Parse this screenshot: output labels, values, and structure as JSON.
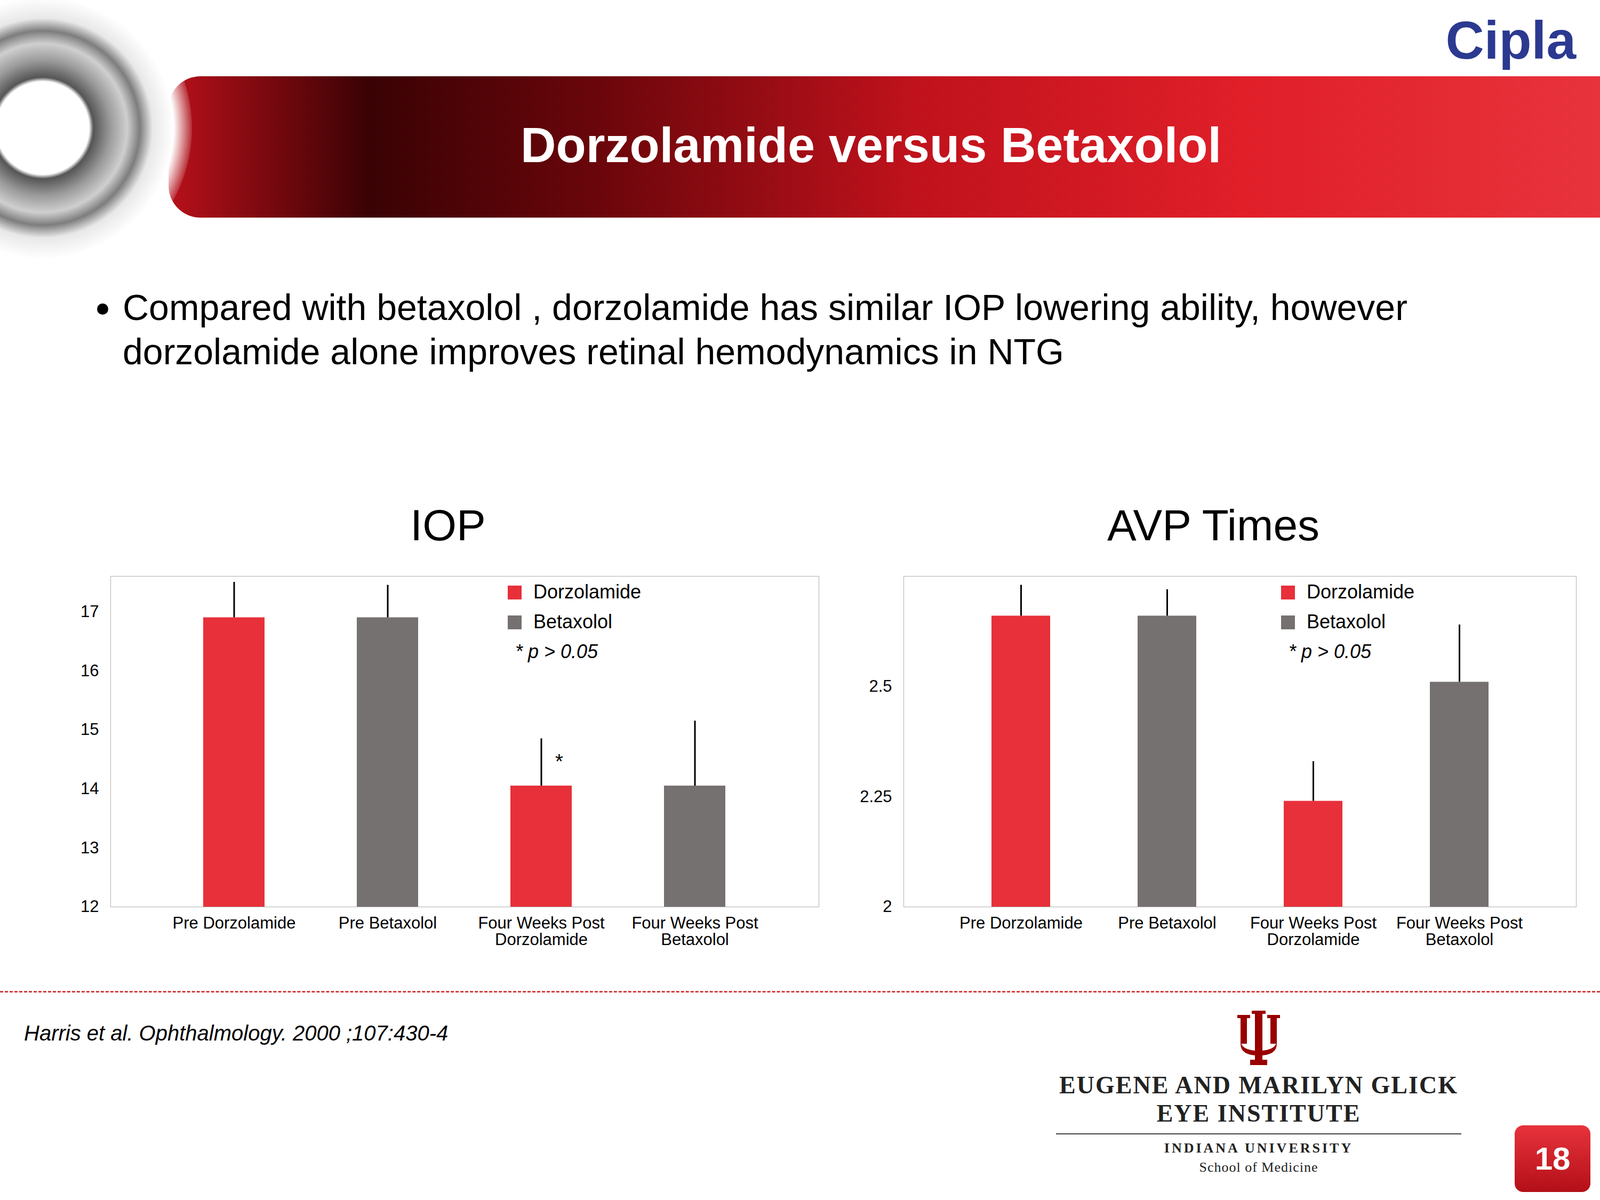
{
  "slide": {
    "logo": "Cipla",
    "title": "Dorzolamide versus Betaxolol",
    "bullet": "Compared with betaxolol , dorzolamide has similar IOP lowering ability, however dorzolamide alone improves retinal hemodynamics in NTG",
    "citation": "Harris et al. Ophthalmology. 2000 ;107:430-4",
    "institute": [
      "EUGENE AND MARILYN GLICK",
      "EYE INSTITUTE"
    ],
    "university": "INDIANA UNIVERSITY",
    "school": "School of Medicine",
    "page": "18"
  },
  "chart_data": [
    {
      "type": "bar",
      "title": "IOP",
      "categories": [
        "Pre Dorzolamide",
        "Pre Betaxolol",
        "Four Weeks Post Dorzolamide",
        "Four Weeks Post Betaxolol"
      ],
      "series": [
        {
          "name": "Dorzolamide",
          "color": "#e8303a",
          "values": [
            16.9,
            null,
            14.05,
            null
          ],
          "errors": [
            0.6,
            null,
            0.8,
            null
          ]
        },
        {
          "name": "Betaxolol",
          "color": "#757170",
          "values": [
            null,
            16.9,
            null,
            14.05
          ],
          "errors": [
            null,
            0.55,
            null,
            1.1
          ]
        }
      ],
      "ylim": [
        12,
        17.6
      ],
      "yticks": [
        12,
        13,
        14,
        15,
        16,
        17
      ],
      "grid": false,
      "legend": "top-right",
      "legend_note": "* p > 0.05",
      "annotations": [
        {
          "text": "*",
          "category": "Four Weeks Post Dorzolamide"
        }
      ]
    },
    {
      "type": "bar",
      "title": "AVP Times",
      "categories": [
        "Pre Dorzolamide",
        "Pre Betaxolol",
        "Four Weeks Post Dorzolamide",
        "Four Weeks Post Betaxolol"
      ],
      "series": [
        {
          "name": "Dorzolamide",
          "color": "#e8303a",
          "values": [
            2.66,
            null,
            2.24,
            null
          ],
          "errors": [
            0.07,
            null,
            0.09,
            null
          ]
        },
        {
          "name": "Betaxolol",
          "color": "#757170",
          "values": [
            null,
            2.66,
            null,
            2.51
          ],
          "errors": [
            null,
            0.06,
            null,
            0.13
          ]
        }
      ],
      "ylim": [
        2,
        2.75
      ],
      "yticks": [
        2,
        2.25,
        2.5
      ],
      "grid": false,
      "legend": "top-right",
      "legend_note": "* p > 0.05"
    }
  ]
}
